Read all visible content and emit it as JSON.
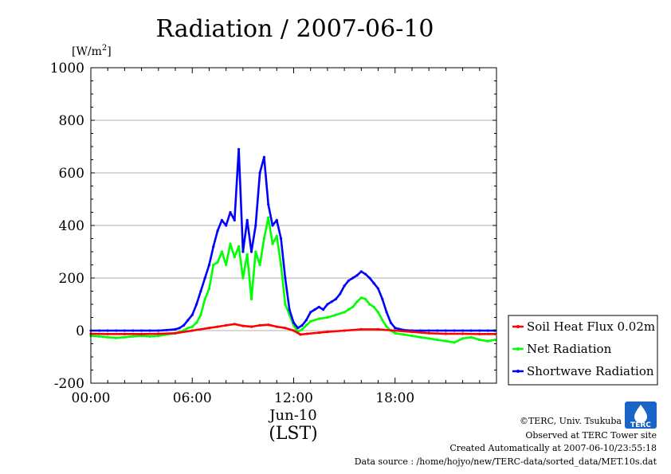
{
  "chart_data": {
    "type": "line",
    "title": "Radiation / 2007-06-10",
    "ylabel_unit": "[W/m",
    "ylabel_sup": "2",
    "ylabel_close": "]",
    "ylim": [
      -200,
      1000
    ],
    "xlim": [
      0,
      24
    ],
    "yticks": [
      1000,
      800,
      600,
      400,
      200,
      0,
      -200
    ],
    "ytick_labels": [
      "1000",
      "800",
      "600",
      "400",
      "200",
      "0",
      "-200"
    ],
    "xticks": [
      0,
      6,
      12,
      18
    ],
    "xtick_labels": [
      "00:00",
      "06:00",
      "12:00",
      "18:00"
    ],
    "x_date_label": "Jun-10",
    "x_tz_label": "(LST)",
    "grid": true,
    "legend_position": "right",
    "series": [
      {
        "name": "Soil Heat Flux 0.02m",
        "color": "#ff0000",
        "x": [
          0,
          1,
          2,
          3,
          4,
          5,
          6,
          7,
          7.5,
          8,
          8.5,
          9,
          9.5,
          10,
          10.5,
          11,
          11.5,
          12,
          12.4,
          12.8,
          13.5,
          14,
          15,
          16,
          17,
          18,
          19,
          20,
          21,
          22,
          23,
          23.9
        ],
        "values": [
          -12,
          -13,
          -13,
          -13,
          -12,
          -10,
          0,
          10,
          15,
          20,
          25,
          18,
          15,
          20,
          22,
          15,
          10,
          0,
          -15,
          -12,
          -8,
          -5,
          0,
          5,
          5,
          0,
          -5,
          -10,
          -12,
          -12,
          -13,
          -13
        ]
      },
      {
        "name": "Net Radiation",
        "color": "#00ff00",
        "x": [
          0,
          0.5,
          1,
          1.5,
          2,
          2.5,
          3,
          3.5,
          4,
          4.5,
          5,
          5.25,
          5.5,
          5.75,
          6,
          6.25,
          6.5,
          6.75,
          7,
          7.25,
          7.5,
          7.75,
          8,
          8.25,
          8.5,
          8.75,
          9,
          9.25,
          9.5,
          9.75,
          10,
          10.25,
          10.5,
          10.75,
          11,
          11.25,
          11.5,
          11.75,
          12,
          12.25,
          12.5,
          12.75,
          13,
          13.5,
          14,
          14.5,
          15,
          15.25,
          15.5,
          15.75,
          16,
          16.25,
          16.5,
          16.75,
          17,
          17.25,
          17.5,
          17.75,
          18,
          18.5,
          19,
          19.5,
          20,
          20.5,
          21,
          21.5,
          22,
          22.5,
          23,
          23.5,
          23.9
        ],
        "values": [
          -20,
          -22,
          -25,
          -28,
          -25,
          -22,
          -20,
          -22,
          -20,
          -15,
          -10,
          -5,
          0,
          10,
          15,
          30,
          60,
          120,
          160,
          250,
          260,
          300,
          250,
          330,
          280,
          320,
          200,
          290,
          120,
          300,
          250,
          350,
          430,
          330,
          360,
          250,
          100,
          60,
          20,
          -5,
          5,
          20,
          35,
          45,
          50,
          60,
          70,
          80,
          90,
          110,
          125,
          120,
          100,
          90,
          70,
          40,
          15,
          0,
          -10,
          -15,
          -20,
          -25,
          -30,
          -35,
          -40,
          -45,
          -30,
          -25,
          -35,
          -40,
          -35
        ]
      },
      {
        "name": "Shortwave Radiation",
        "color": "#0000ff",
        "x": [
          0,
          0.5,
          1,
          1.5,
          2,
          2.5,
          3,
          3.5,
          4,
          4.5,
          5,
          5.25,
          5.5,
          5.75,
          6,
          6.25,
          6.5,
          6.75,
          7,
          7.25,
          7.5,
          7.75,
          8,
          8.25,
          8.5,
          8.75,
          9,
          9.25,
          9.5,
          9.75,
          10,
          10.25,
          10.5,
          10.75,
          11,
          11.25,
          11.5,
          11.75,
          12,
          12.25,
          12.5,
          12.75,
          13,
          13.25,
          13.5,
          13.75,
          14,
          14.25,
          14.5,
          14.75,
          15,
          15.25,
          15.5,
          15.75,
          16,
          16.25,
          16.5,
          16.75,
          17,
          17.25,
          17.5,
          17.75,
          18,
          18.5,
          19,
          19.5,
          20,
          20.5,
          21,
          21.5,
          22,
          22.5,
          23,
          23.5,
          23.9
        ],
        "values": [
          0,
          0,
          0,
          0,
          0,
          0,
          0,
          0,
          0,
          2,
          5,
          10,
          20,
          40,
          60,
          100,
          150,
          200,
          250,
          320,
          380,
          420,
          400,
          450,
          420,
          690,
          300,
          420,
          300,
          400,
          600,
          660,
          480,
          400,
          420,
          350,
          200,
          80,
          30,
          10,
          20,
          40,
          70,
          80,
          90,
          80,
          100,
          110,
          120,
          140,
          170,
          190,
          200,
          210,
          225,
          215,
          200,
          180,
          160,
          120,
          70,
          30,
          10,
          2,
          0,
          0,
          0,
          0,
          0,
          0,
          0,
          0,
          0,
          0,
          0
        ]
      }
    ]
  },
  "footer": {
    "copyright": "©TERC, Univ. Tsukuba",
    "observed": "Observed at TERC Tower site",
    "created": "Created Automatically at 2007-06-10/23:55:18",
    "source": "Data source : /home/hojyo/new/TERC-data/sorted_data/MET.10s.dat",
    "logo_text": "TERC"
  }
}
